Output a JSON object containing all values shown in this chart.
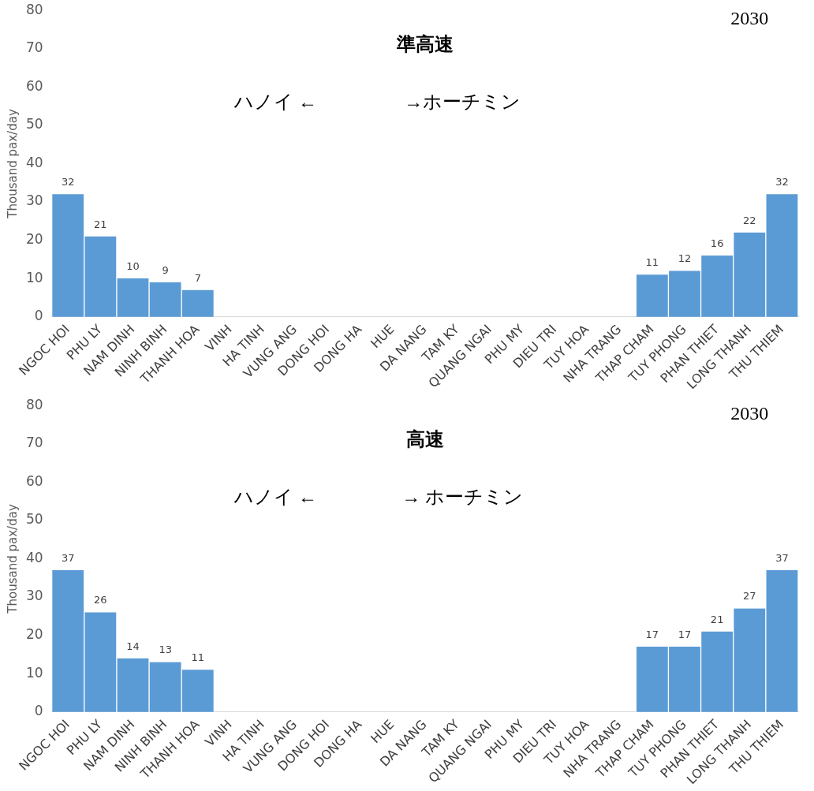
{
  "chart_data": [
    {
      "type": "bar",
      "title": "準高速",
      "ylabel": "Thousand pax/day",
      "categories": [
        "NGOC HOI",
        "PHU LY",
        "NAM DINH",
        "NINH BINH",
        "THANH HOA",
        "VINH",
        "HA TINH",
        "VUNG ANG",
        "DONG HOI",
        "DONG HA",
        "HUE",
        "DA NANG",
        "TAM KY",
        "QUANG NGAI",
        "PHU MY",
        "DIEU TRI",
        "TUY HOA",
        "NHA TRANG",
        "THAP CHAM",
        "TUY PHONG",
        "PHAN THIET",
        "LONG THANH",
        "THU THIEM"
      ],
      "values": [
        32,
        21,
        10,
        9,
        7,
        null,
        null,
        null,
        null,
        null,
        null,
        null,
        null,
        null,
        null,
        null,
        null,
        null,
        11,
        12,
        16,
        22,
        32
      ],
      "color": "#5b9bd5",
      "ylim": [
        0,
        80
      ],
      "yticks": [
        0,
        10,
        20,
        30,
        40,
        50,
        60,
        70,
        80
      ],
      "grid": false,
      "data_labels": true,
      "annotations": [
        "2030",
        "ハノイ ←",
        "→ホーチミン"
      ]
    },
    {
      "type": "bar",
      "title": "高速",
      "ylabel": "Thousand pax/day",
      "categories": [
        "NGOC HOI",
        "PHU LY",
        "NAM DINH",
        "NINH BINH",
        "THANH HOA",
        "VINH",
        "HA TINH",
        "VUNG ANG",
        "DONG HOI",
        "DONG HA",
        "HUE",
        "DA NANG",
        "TAM KY",
        "QUANG NGAI",
        "PHU MY",
        "DIEU TRI",
        "TUY HOA",
        "NHA TRANG",
        "THAP CHAM",
        "TUY PHONG",
        "PHAN THIET",
        "LONG THANH",
        "THU THIEM"
      ],
      "values": [
        37,
        26,
        14,
        13,
        11,
        null,
        null,
        null,
        null,
        null,
        null,
        null,
        null,
        null,
        null,
        null,
        null,
        null,
        17,
        17,
        21,
        27,
        37
      ],
      "color": "#5b9bd5",
      "ylim": [
        0,
        80
      ],
      "yticks": [
        0,
        10,
        20,
        30,
        40,
        50,
        60,
        70,
        80
      ],
      "grid": false,
      "data_labels": true,
      "annotations": [
        "2030",
        "ハノイ ←",
        "→ ホーチミン"
      ]
    }
  ]
}
